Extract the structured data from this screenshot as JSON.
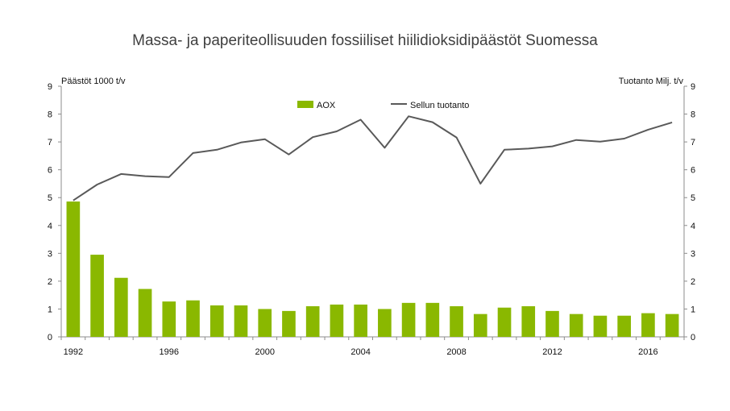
{
  "chart_data": {
    "type": "bar+line",
    "title": "Massa- ja paperiteollisuuden fossiiliset hiilidioksidipäästöt Suomessa",
    "ylabel_left": "Päästöt 1000 t/v",
    "ylabel_right": "Tuotanto Milj. t/v",
    "ylim_left": [
      0,
      9
    ],
    "ylim_right": [
      0,
      9
    ],
    "yticks_left": [
      "0",
      "1",
      "2",
      "3",
      "4",
      "5",
      "6",
      "7",
      "8",
      "9"
    ],
    "yticks_right": [
      "0",
      "1",
      "2",
      "3",
      "4",
      "5",
      "6",
      "7",
      "8",
      "9"
    ],
    "x": [
      1992,
      1993,
      1994,
      1995,
      1996,
      1997,
      1998,
      1999,
      2000,
      2001,
      2002,
      2003,
      2004,
      2005,
      2006,
      2007,
      2008,
      2009,
      2010,
      2011,
      2012,
      2013,
      2014,
      2015,
      2016,
      2017
    ],
    "xtick_labels": [
      "1992",
      "1996",
      "2000",
      "2004",
      "2008",
      "2012",
      "2016"
    ],
    "series": [
      {
        "name": "AOX",
        "type": "bar",
        "axis": "left",
        "color": "#8ab800",
        "values": [
          4.86,
          2.95,
          2.12,
          1.72,
          1.27,
          1.31,
          1.13,
          1.13,
          1.0,
          0.93,
          1.1,
          1.16,
          1.16,
          1.0,
          1.22,
          1.22,
          1.1,
          0.82,
          1.05,
          1.1,
          0.93,
          0.82,
          0.76,
          0.76,
          0.85,
          0.82
        ]
      },
      {
        "name": "Sellun tuotanto",
        "type": "line",
        "axis": "right",
        "color": "#595959",
        "values": [
          4.9,
          5.47,
          5.85,
          5.77,
          5.74,
          6.6,
          6.72,
          6.98,
          7.1,
          6.55,
          7.17,
          7.38,
          7.8,
          6.79,
          7.92,
          7.71,
          7.16,
          5.5,
          6.72,
          6.76,
          6.84,
          7.07,
          7.01,
          7.12,
          7.44,
          7.7
        ]
      }
    ],
    "legend": "top-center",
    "grid": false
  }
}
